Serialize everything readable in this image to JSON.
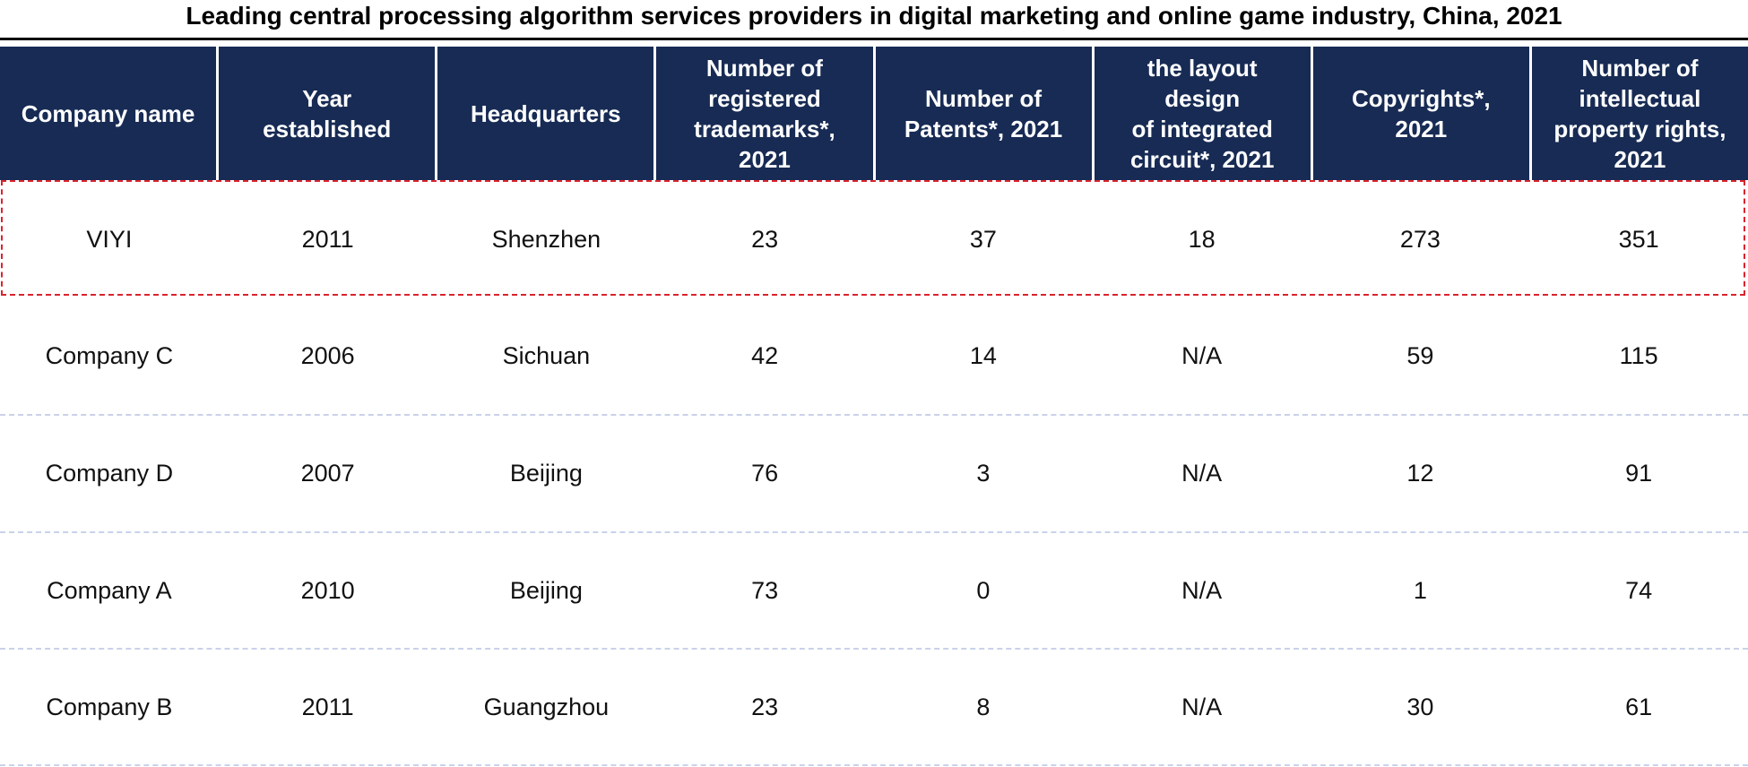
{
  "chart_data": {
    "type": "table",
    "title": "Leading central processing algorithm services providers in digital marketing and online game industry, China, 2021",
    "columns": [
      "Company name",
      "Year\nestablished",
      "Headquarters",
      "Number of\nregistered\ntrademarks*,\n2021",
      "Number of\nPatents*, 2021",
      "the layout\ndesign\nof integrated\ncircuit*, 2021",
      "Copyrights*,\n2021",
      "Number of\nintellectual\nproperty rights,\n2021"
    ],
    "rows": [
      [
        "VIYI",
        "2011",
        "Shenzhen",
        "23",
        "37",
        "18",
        "273",
        "351"
      ],
      [
        "Company C",
        "2006",
        "Sichuan",
        "42",
        "14",
        "N/A",
        "59",
        "115"
      ],
      [
        "Company D",
        "2007",
        "Beijing",
        "76",
        "3",
        "N/A",
        "12",
        "91"
      ],
      [
        "Company A",
        "2010",
        "Beijing",
        "73",
        "0",
        "N/A",
        "1",
        "74"
      ],
      [
        "Company B",
        "2011",
        "Guangzhou",
        "23",
        "8",
        "N/A",
        "30",
        "61"
      ]
    ],
    "highlighted_row": 0,
    "colors": {
      "header_background": "#172b54",
      "header_text": "#ffffff",
      "highlight_border": "#d9232d",
      "row_divider": "#c9d2ea"
    }
  }
}
